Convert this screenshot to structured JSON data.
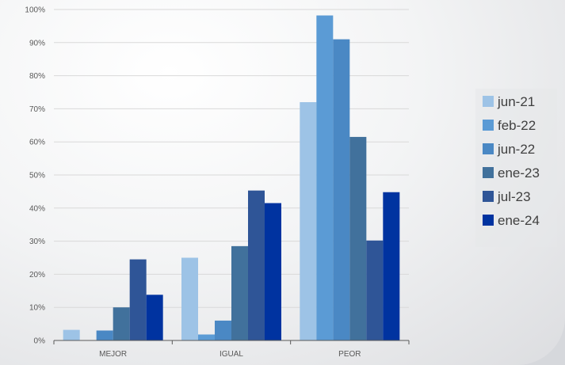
{
  "chart_data": {
    "type": "bar",
    "title": "",
    "xlabel": "",
    "ylabel": "",
    "categories": [
      "MEJOR",
      "IGUAL",
      "PEOR"
    ],
    "y_ticks": [
      "0%",
      "10%",
      "20%",
      "30%",
      "40%",
      "50%",
      "60%",
      "70%",
      "80%",
      "90%",
      "100%"
    ],
    "ylim": [
      0,
      100
    ],
    "grid": true,
    "legend_position": "right",
    "series": [
      {
        "name": "jun-21",
        "color": "#9dc3e6",
        "values": [
          3.2,
          25,
          72
        ]
      },
      {
        "name": "feb-22",
        "color": "#5b9bd5",
        "values": [
          0,
          1.8,
          98.2
        ]
      },
      {
        "name": "jun-22",
        "color": "#4a88c4",
        "values": [
          3,
          6,
          91
        ]
      },
      {
        "name": "ene-23",
        "color": "#41719c",
        "values": [
          10,
          28.5,
          61.5
        ]
      },
      {
        "name": "jul-23",
        "color": "#2f5597",
        "values": [
          24.5,
          45.3,
          30.2
        ]
      },
      {
        "name": "ene-24",
        "color": "#0033a0",
        "values": [
          13.8,
          41.5,
          44.8
        ]
      }
    ]
  }
}
